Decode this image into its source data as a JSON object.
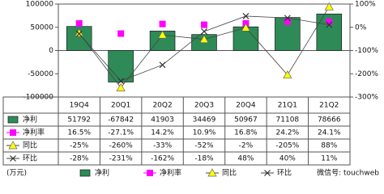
{
  "chart_data": {
    "type": "bar",
    "categories": [
      "19Q4",
      "20Q1",
      "20Q2",
      "20Q3",
      "20Q4",
      "21Q1",
      "21Q2"
    ],
    "series": [
      {
        "name": "净利",
        "type": "bar",
        "color": "#2e8b57",
        "axis": "y",
        "values": [
          51792,
          -67842,
          41903,
          34469,
          50967,
          71108,
          78666
        ]
      },
      {
        "name": "净利率",
        "type": "line",
        "color": "#ff00ff",
        "axis": "y2",
        "values": [
          16.5,
          -27.1,
          14.2,
          10.9,
          16.8,
          24.2,
          24.1
        ],
        "value_labels": [
          "16.5%",
          "-27.1%",
          "14.2%",
          "10.9%",
          "16.8%",
          "24.2%",
          "24.1%"
        ]
      },
      {
        "name": "同比",
        "type": "line",
        "color": "#ffff00",
        "axis": "y2",
        "values": [
          -25,
          -260,
          -33,
          -52,
          -2,
          -205,
          88
        ],
        "value_labels": [
          "-25%",
          "-260%",
          "-33%",
          "-52%",
          "-2%",
          "-205%",
          "88%"
        ]
      },
      {
        "name": "环比",
        "type": "line",
        "color": "#333333",
        "axis": "y2",
        "values": [
          -28,
          -231,
          -162,
          -18,
          48,
          40,
          11
        ],
        "value_labels": [
          "-28%",
          "-231%",
          "-162%",
          "-18%",
          "48%",
          "40%",
          "11%"
        ]
      }
    ],
    "ylim": [
      -100000,
      100000
    ],
    "yticks": [
      -100000,
      -50000,
      0,
      50000,
      100000
    ],
    "y2lim": [
      -300,
      100
    ],
    "y2ticks": [
      {
        "value": -300,
        "label": "-300%"
      },
      {
        "value": -200,
        "label": "-200%"
      },
      {
        "value": -100,
        "label": "-100%"
      },
      {
        "value": 0,
        "label": "0%"
      },
      {
        "value": 100,
        "label": "100%"
      }
    ],
    "unit": "(万元)",
    "watermark": "微信号: touchweb"
  }
}
